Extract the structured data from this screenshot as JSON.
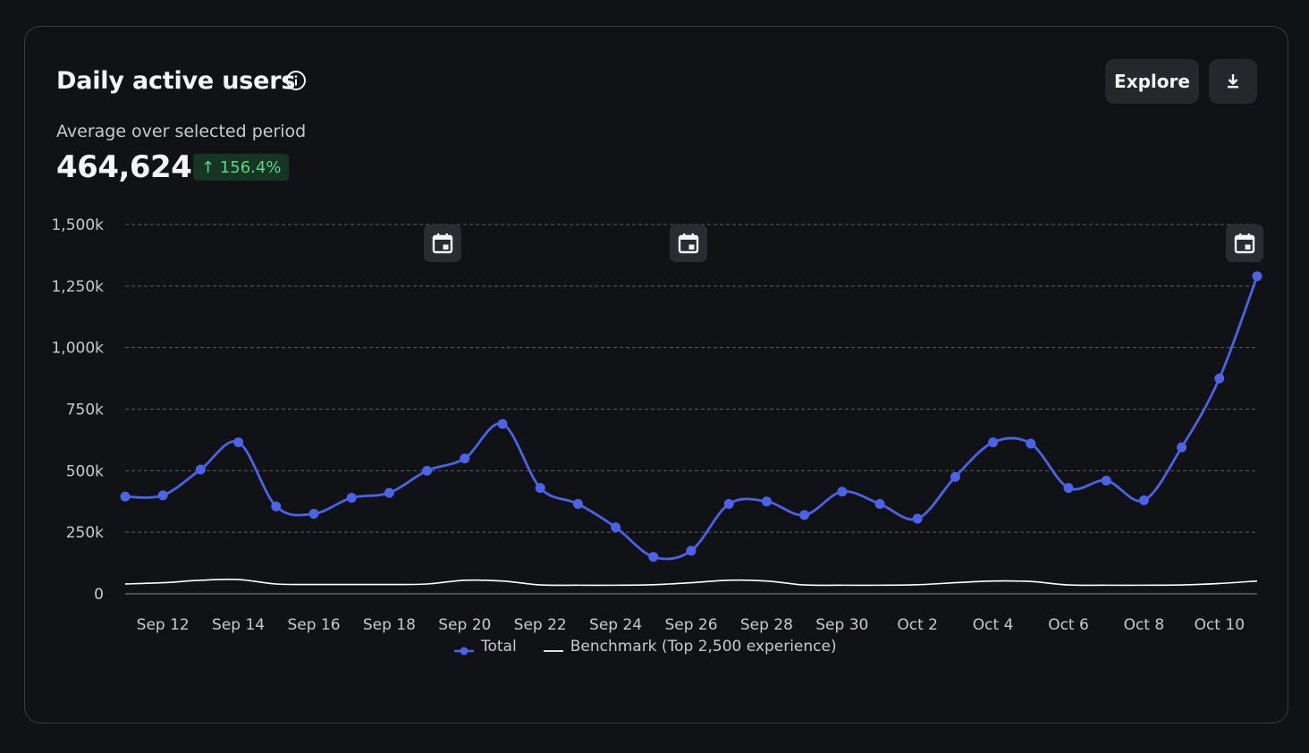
{
  "header": {
    "title": "Daily active users",
    "explore_label": "Explore",
    "subtitle": "Average over selected period",
    "value": "464,624",
    "change": "↑ 156.4%",
    "change_color": "#5fd48b",
    "info_icon": "info-circle-icon",
    "download_icon": "download-icon"
  },
  "chart_data": {
    "type": "line",
    "x": [
      "Sep 11",
      "Sep 12",
      "Sep 13",
      "Sep 14",
      "Sep 15",
      "Sep 16",
      "Sep 17",
      "Sep 18",
      "Sep 19",
      "Sep 20",
      "Sep 21",
      "Sep 22",
      "Sep 23",
      "Sep 24",
      "Sep 25",
      "Sep 26",
      "Sep 27",
      "Sep 28",
      "Sep 29",
      "Sep 30",
      "Oct 1",
      "Oct 2",
      "Oct 3",
      "Oct 4",
      "Oct 5",
      "Oct 6",
      "Oct 7",
      "Oct 8",
      "Oct 9",
      "Oct 10",
      "Oct 11"
    ],
    "x_tick_labels": [
      "Sep 12",
      "Sep 14",
      "Sep 16",
      "Sep 18",
      "Sep 20",
      "Sep 22",
      "Sep 24",
      "Sep 26",
      "Sep 28",
      "Sep 30",
      "Oct 2",
      "Oct 4",
      "Oct 6",
      "Oct 8",
      "Oct 10"
    ],
    "y_ticks": [
      0,
      250000,
      500000,
      750000,
      1000000,
      1250000,
      1500000
    ],
    "y_tick_labels": [
      "0",
      "250k",
      "500k",
      "750k",
      "1,000k",
      "1,250k",
      "1,500k"
    ],
    "ylim": [
      0,
      1500000
    ],
    "grid": true,
    "legend_position": "bottom-center",
    "annotation_marker_icon": "calendar-icon",
    "annotation_dates": [
      "Sep 20",
      "Sep 26",
      "Oct 11"
    ],
    "series": [
      {
        "name": "Total",
        "color": "#4a63e8",
        "markers": true,
        "values": [
          395000,
          400000,
          505000,
          615000,
          355000,
          325000,
          390000,
          410000,
          500000,
          550000,
          690000,
          430000,
          365000,
          270000,
          150000,
          175000,
          365000,
          375000,
          320000,
          415000,
          365000,
          305000,
          475000,
          615000,
          610000,
          430000,
          460000,
          380000,
          595000,
          875000,
          1290000
        ]
      },
      {
        "name": "Benchmark (Top 2,500 experience)",
        "color": "#ffffff",
        "markers": false,
        "values": [
          40000,
          45000,
          55000,
          58000,
          40000,
          38000,
          38000,
          38000,
          40000,
          55000,
          52000,
          36000,
          35000,
          35000,
          37000,
          45000,
          55000,
          52000,
          36000,
          35000,
          35000,
          37000,
          45000,
          52000,
          50000,
          36000,
          35000,
          35000,
          36000,
          42000,
          52000
        ]
      }
    ]
  }
}
